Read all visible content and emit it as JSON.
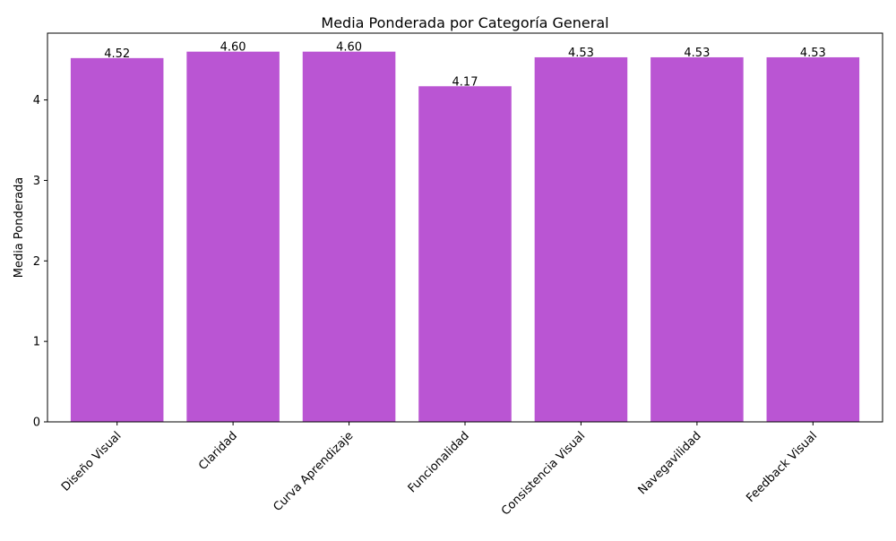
{
  "chart_data": {
    "type": "bar",
    "title": "Media Ponderada por Categoría General",
    "xlabel": "",
    "ylabel": "Media Ponderada",
    "categories": [
      "Diseño Visual",
      "Claridad",
      "Curva Aprendizaje",
      "Funcionalidad",
      "Consistencia Visual",
      "Navegavilidad",
      "Feedback Visual"
    ],
    "values": [
      4.52,
      4.6,
      4.6,
      4.17,
      4.53,
      4.53,
      4.53
    ],
    "value_labels": [
      "4.52",
      "4.60",
      "4.60",
      "4.17",
      "4.53",
      "4.53",
      "4.53"
    ],
    "ylim": [
      0,
      4.83
    ],
    "yticks": [
      0,
      1,
      2,
      3,
      4
    ],
    "bar_color": "#ba55d3",
    "grid": false,
    "legend": "none"
  }
}
